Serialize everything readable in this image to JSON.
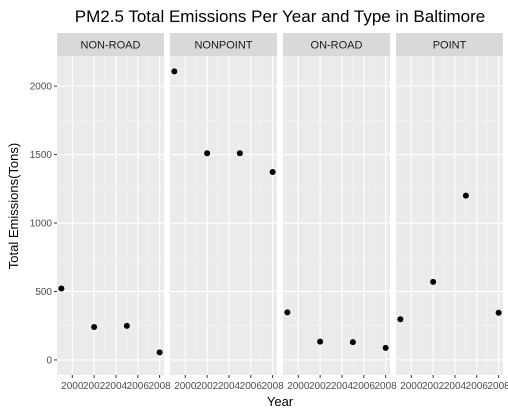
{
  "chart_data": {
    "type": "scatter",
    "title": "PM2.5 Total Emissions Per Year and Type in Baltimore",
    "xlabel": "Year",
    "ylabel": "Total Emissions(Tons)",
    "xlim": [
      1998.6,
      2008.4
    ],
    "ylim": [
      -110,
      2220
    ],
    "x_ticks": [
      2000,
      2002,
      2004,
      2006,
      2008
    ],
    "x_tick_labels": [
      "2000",
      "2002",
      "2004",
      "2006",
      "2008"
    ],
    "y_ticks": [
      0,
      500,
      1000,
      1500,
      2000
    ],
    "y_tick_labels": [
      "0",
      "500",
      "1000",
      "1500",
      "2000"
    ],
    "grid": true,
    "point_color": "#000000",
    "panel_background": "#ebebeb",
    "strip_background": "#d9d9d9",
    "panels": [
      {
        "label": "NON-ROAD",
        "points": [
          {
            "x": 1999,
            "y": 522
          },
          {
            "x": 2002,
            "y": 241
          },
          {
            "x": 2005,
            "y": 249
          },
          {
            "x": 2008,
            "y": 55
          }
        ]
      },
      {
        "label": "NONPOINT",
        "points": [
          {
            "x": 1999,
            "y": 2108
          },
          {
            "x": 2002,
            "y": 1510
          },
          {
            "x": 2005,
            "y": 1510
          },
          {
            "x": 2008,
            "y": 1373
          }
        ]
      },
      {
        "label": "ON-ROAD",
        "points": [
          {
            "x": 1999,
            "y": 347
          },
          {
            "x": 2002,
            "y": 134
          },
          {
            "x": 2005,
            "y": 130
          },
          {
            "x": 2008,
            "y": 88
          }
        ]
      },
      {
        "label": "POINT",
        "points": [
          {
            "x": 1999,
            "y": 297
          },
          {
            "x": 2002,
            "y": 570
          },
          {
            "x": 2005,
            "y": 1200
          },
          {
            "x": 2008,
            "y": 345
          }
        ]
      }
    ]
  }
}
